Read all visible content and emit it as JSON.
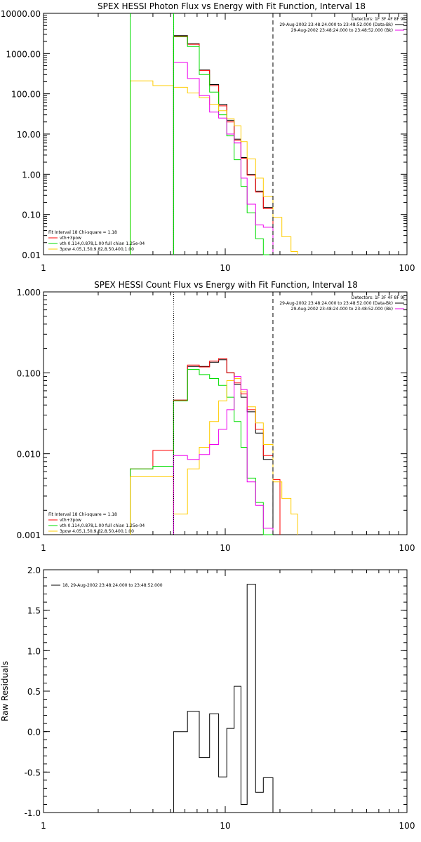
{
  "chart_data": [
    {
      "type": "line",
      "title": "SPEX HESSI Photon Flux vs Energy with Fit Function, Interval 18",
      "xscale": "log",
      "yscale": "log",
      "xlim": [
        1,
        100
      ],
      "ylim": [
        0.01,
        10000
      ],
      "x_ticks": [
        "1",
        "10",
        "100"
      ],
      "y_ticks": [
        "0.01",
        "0.10",
        "1.00",
        "10.00",
        "100.00",
        "1000.00",
        "10000.00"
      ],
      "header": {
        "detectors": "Detectors: 1F 3F 4F 8F 9F",
        "line1": "29-Aug-2002 23:48:24.000 to 23:48:52.000 (Data-Bk)",
        "line2": "29-Aug-2002 23:48:24.000 to 23:48:52.000 (Bk)"
      },
      "legend": {
        "title": "Fit Interval 18    Chi-square = 1.18",
        "entries": [
          {
            "label": "vth+3pow",
            "color": "#ff0000"
          },
          {
            "label": "vth 0.114,0.878,1.00  full chian 1.25e-04",
            "color": "#00dd00"
          },
          {
            "label": "3pow 4.05,1.50,9.82,8.50,400,1.00",
            "color": "#ffcc00"
          }
        ]
      },
      "vlines": [
        {
          "x": 3.0,
          "style": "solid",
          "color": "#00dd00"
        },
        {
          "x": 5.2,
          "style": "dotted",
          "color": "#000000"
        },
        {
          "x": 5.2,
          "style": "solid",
          "color": "#00dd00"
        },
        {
          "x": 18.3,
          "style": "dashed",
          "color": "#000000"
        }
      ],
      "series": [
        {
          "name": "data",
          "color": "#000000",
          "edges": [
            5.2,
            6.2,
            7.2,
            8.2,
            9.2,
            10.2,
            11.2,
            12.2,
            13.2,
            14.7,
            16.2,
            18.3
          ],
          "values": [
            2800,
            1750,
            390,
            170,
            55,
            22,
            7.5,
            2.6,
            0.98,
            0.38,
            0.15
          ]
        },
        {
          "name": "vth+3pow",
          "color": "#ff0000",
          "edges": [
            5.2,
            6.2,
            7.2,
            8.2,
            9.2,
            10.2,
            11.2,
            12.2,
            13.2,
            14.7,
            16.2,
            18.3
          ],
          "values": [
            2700,
            1700,
            380,
            160,
            50,
            20,
            7,
            2.5,
            0.95,
            0.36,
            0.14
          ]
        },
        {
          "name": "vth",
          "color": "#00dd00",
          "edges": [
            5.2,
            6.2,
            7.2,
            8.2,
            9.2,
            10.2,
            11.2,
            12.2,
            13.2,
            14.7,
            16.2,
            17.5
          ],
          "values": [
            2600,
            1500,
            300,
            110,
            30,
            9,
            2.3,
            0.5,
            0.11,
            0.025,
            0.01
          ]
        },
        {
          "name": "3pow",
          "color": "#ffcc00",
          "edges": [
            3.0,
            4.0,
            5.2,
            6.2,
            7.2,
            8.2,
            9.2,
            10.2,
            11.2,
            12.2,
            13.2,
            14.7,
            16.2,
            18.3,
            20.5,
            23.0,
            25.0
          ],
          "values": [
            210,
            160,
            145,
            105,
            80,
            55,
            38,
            24,
            16,
            6.5,
            2.4,
            0.8,
            0.28,
            0.085,
            0.028,
            0.012
          ]
        },
        {
          "name": "background",
          "color": "#ee00ee",
          "edges": [
            5.2,
            6.2,
            7.2,
            8.2,
            9.2,
            10.2,
            11.2,
            12.2,
            13.2,
            14.7,
            16.2,
            18.3
          ],
          "values": [
            600,
            240,
            90,
            35,
            25,
            10,
            6,
            0.8,
            0.18,
            0.055,
            0.048
          ]
        }
      ]
    },
    {
      "type": "line",
      "title": "SPEX HESSI Count Flux vs Energy with Fit Function, Interval 18",
      "xscale": "log",
      "yscale": "log",
      "xlim": [
        1,
        100
      ],
      "ylim": [
        0.001,
        1
      ],
      "x_ticks": [
        "1",
        "10",
        "100"
      ],
      "y_ticks": [
        "0.001",
        "0.010",
        "0.100",
        "1.000"
      ],
      "header": {
        "detectors": "Detectors: 1F 3F 4F 8F 9F",
        "line1": "29-Aug-2002 23:48:24.000 to 23:48:52.000 (Data-Bk)",
        "line2": "29-Aug-2002 23:48:24.000 to 23:48:52.000 (Bk)"
      },
      "legend": {
        "title": "Fit Interval 18    Chi-square = 1.18",
        "entries": [
          {
            "label": "vth+3pow",
            "color": "#ff0000"
          },
          {
            "label": "vth 0.114,0.878,1.00  full chian 1.25e-04",
            "color": "#00dd00"
          },
          {
            "label": "3pow 4.05,1.50,9.82,8.50,400,1.00",
            "color": "#ffcc00"
          }
        ]
      },
      "vlines": [
        {
          "x": 5.2,
          "style": "dotted",
          "color": "#000000"
        },
        {
          "x": 18.3,
          "style": "dashed",
          "color": "#000000"
        }
      ],
      "series": [
        {
          "name": "data",
          "color": "#000000",
          "edges": [
            5.2,
            6.2,
            7.2,
            8.2,
            9.2,
            10.2,
            11.2,
            12.2,
            13.2,
            14.7,
            16.2,
            18.3
          ],
          "values": [
            0.046,
            0.12,
            0.12,
            0.135,
            0.145,
            0.1,
            0.072,
            0.05,
            0.033,
            0.018,
            0.0085
          ]
        },
        {
          "name": "vth+3pow",
          "color": "#ff0000",
          "edges": [
            3.0,
            4.0,
            5.2,
            6.2,
            7.2,
            8.2,
            9.2,
            10.2,
            11.2,
            12.2,
            13.2,
            14.7,
            16.2,
            18.3,
            20.0
          ],
          "values": [
            0.0065,
            0.011,
            0.046,
            0.125,
            0.118,
            0.14,
            0.15,
            0.1,
            0.075,
            0.055,
            0.035,
            0.02,
            0.0095,
            0.0048
          ]
        },
        {
          "name": "vth",
          "color": "#00dd00",
          "edges": [
            3.0,
            4.0,
            5.2,
            6.2,
            7.2,
            8.2,
            9.2,
            10.2,
            11.2,
            12.2,
            13.2,
            14.7,
            16.2,
            18.3
          ],
          "values": [
            0.0065,
            0.007,
            0.045,
            0.11,
            0.095,
            0.085,
            0.07,
            0.05,
            0.025,
            0.012,
            0.005,
            0.0025,
            0.001
          ]
        },
        {
          "name": "3pow",
          "color": "#ffcc00",
          "edges": [
            3.0,
            4.0,
            5.2,
            6.2,
            7.2,
            8.2,
            9.2,
            10.2,
            11.2,
            12.2,
            13.2,
            14.7,
            16.2,
            18.3,
            20.5,
            23.0,
            25.0
          ],
          "values": [
            0.0052,
            0.0052,
            0.0018,
            0.0065,
            0.012,
            0.025,
            0.045,
            0.08,
            0.085,
            0.058,
            0.038,
            0.024,
            0.013,
            0.0045,
            0.0028,
            0.0018
          ]
        },
        {
          "name": "background",
          "color": "#ee00ee",
          "edges": [
            5.2,
            6.2,
            7.2,
            8.2,
            9.2,
            10.2,
            11.2,
            12.2,
            13.2,
            14.7,
            16.2,
            18.3
          ],
          "values": [
            0.0095,
            0.0085,
            0.0098,
            0.013,
            0.02,
            0.035,
            0.09,
            0.062,
            0.0045,
            0.0023,
            0.0012
          ]
        }
      ]
    },
    {
      "type": "line",
      "xscale": "log",
      "yscale": "linear",
      "xlim": [
        1,
        100
      ],
      "ylim": [
        -1.0,
        2.0
      ],
      "x_ticks": [
        "1",
        "10",
        "100"
      ],
      "y_ticks": [
        "-1.0",
        "-0.5",
        "0.0",
        "0.5",
        "1.0",
        "1.5",
        "2.0"
      ],
      "ylabel": "Raw Residuals",
      "legend": {
        "entries": [
          {
            "label": "18, 29-Aug-2002 23:48:24.000 to 23:48:52.000",
            "color": "#000000"
          }
        ]
      },
      "series": [
        {
          "color": "#000000",
          "edges": [
            5.2,
            6.2,
            7.2,
            8.2,
            9.2,
            10.2,
            11.2,
            12.2,
            13.2,
            14.7,
            16.2,
            18.3
          ],
          "values": [
            0.0,
            0.25,
            -0.32,
            0.22,
            -0.56,
            0.04,
            0.56,
            -0.9,
            1.82,
            -0.75,
            -0.57
          ]
        }
      ]
    }
  ]
}
